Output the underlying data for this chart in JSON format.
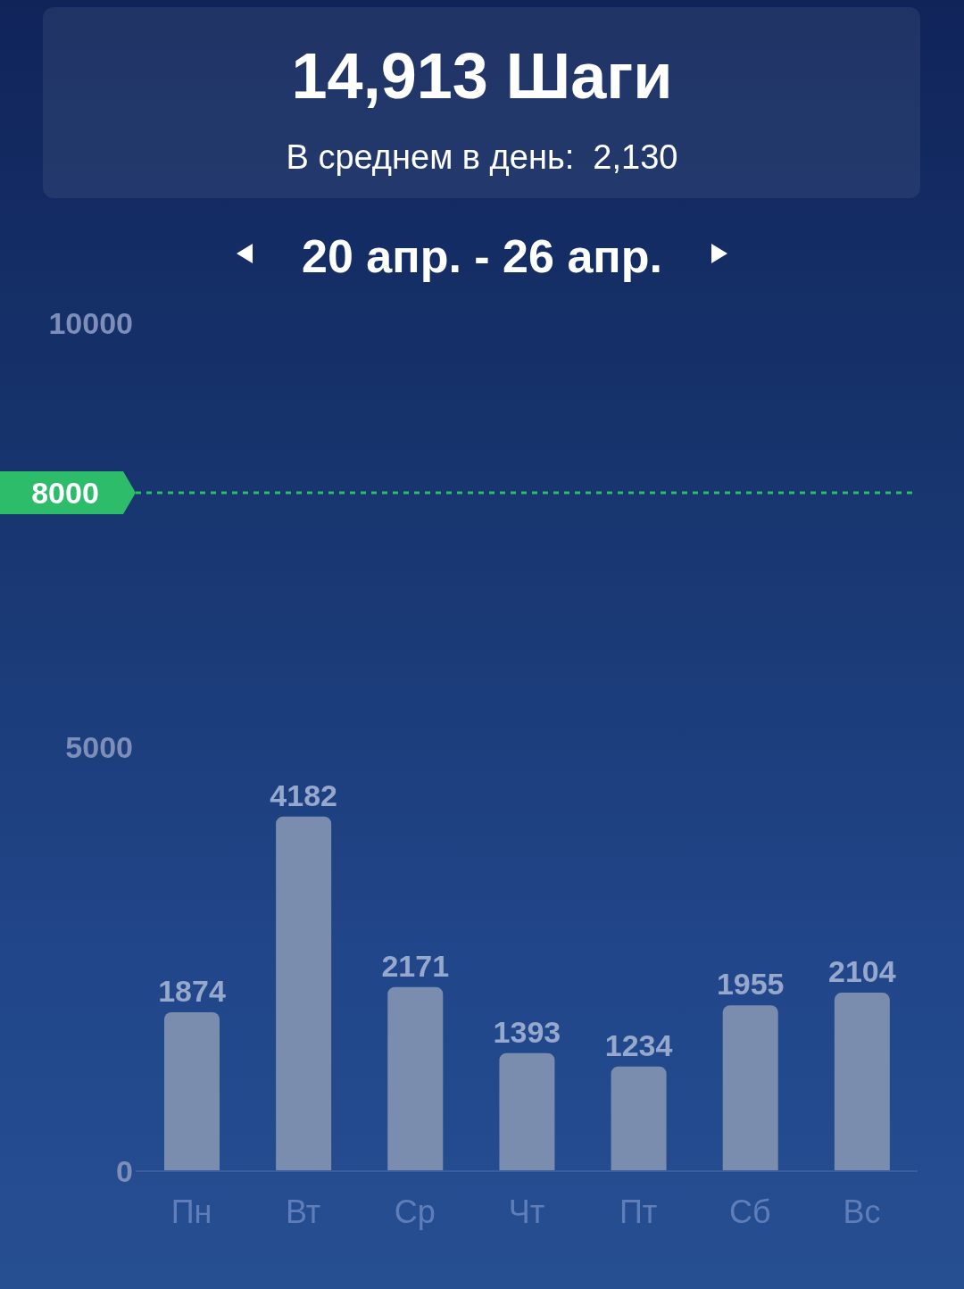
{
  "chart_data": {
    "type": "bar",
    "title": "14,913 Шаги",
    "subtitle": "В среднем в день:  2,130",
    "annotations": [
      "20 апр. - 26 апр."
    ],
    "categories": [
      "Пн",
      "Вт",
      "Ср",
      "Чт",
      "Пт",
      "Сб",
      "Вс"
    ],
    "values": [
      1874,
      4182,
      2171,
      1393,
      1234,
      1955,
      2104
    ],
    "color": "#7b8dae",
    "ylim": [
      0,
      10000
    ],
    "yticks": [
      0,
      5000,
      10000
    ],
    "ref_lines": [
      {
        "axis": "y",
        "value": 8000,
        "label": "8000",
        "color": "#2dbd6a",
        "line_style": "dashed"
      }
    ],
    "data_labels": true
  }
}
